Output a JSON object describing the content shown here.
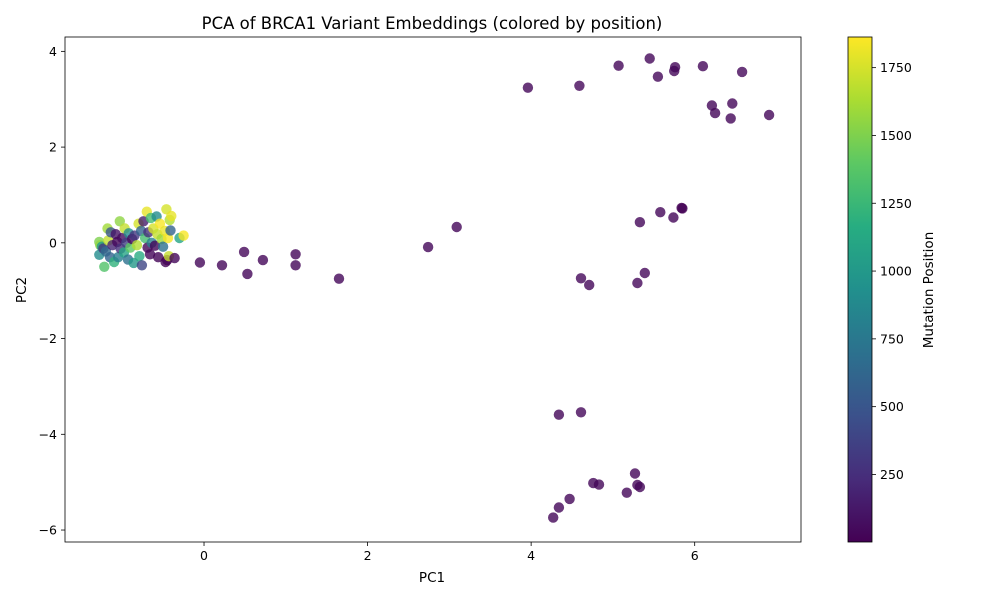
{
  "chart_data": {
    "type": "scatter",
    "title": "PCA of BRCA1 Variant Embeddings (colored by position)",
    "xlabel": "PC1",
    "ylabel": "PC2",
    "xlim": [
      -1.7,
      7.3
    ],
    "ylim": [
      -6.25,
      4.3
    ],
    "xticks": [
      0,
      2,
      4,
      6
    ],
    "yticks": [
      4,
      2,
      0,
      -2,
      -4,
      -6
    ],
    "xtick_labels": [
      "0",
      "2",
      "4",
      "6"
    ],
    "ytick_labels": [
      "4",
      "2",
      "0",
      "−2",
      "−4",
      "−6"
    ],
    "colorbar": {
      "label": "Mutation Position",
      "colormap": "viridis",
      "range": [
        1,
        1863
      ],
      "ticks": [
        250,
        500,
        750,
        1000,
        1250,
        1500,
        1750
      ],
      "tick_labels": [
        "250",
        "500",
        "750",
        "1000",
        "1250",
        "1500",
        "1750"
      ]
    },
    "grid": false,
    "legend": "none",
    "points": [
      {
        "x": 3.96,
        "y": 3.24,
        "c": 30
      },
      {
        "x": 4.59,
        "y": 3.28,
        "c": 40
      },
      {
        "x": 5.07,
        "y": 3.7,
        "c": 30
      },
      {
        "x": 5.45,
        "y": 3.85,
        "c": 30
      },
      {
        "x": 5.55,
        "y": 3.47,
        "c": 30
      },
      {
        "x": 5.75,
        "y": 3.59,
        "c": 30
      },
      {
        "x": 5.76,
        "y": 3.67,
        "c": 30
      },
      {
        "x": 6.1,
        "y": 3.69,
        "c": 30
      },
      {
        "x": 6.58,
        "y": 3.57,
        "c": 40
      },
      {
        "x": 6.21,
        "y": 2.87,
        "c": 30
      },
      {
        "x": 6.46,
        "y": 2.91,
        "c": 30
      },
      {
        "x": 6.25,
        "y": 2.71,
        "c": 30
      },
      {
        "x": 6.44,
        "y": 2.6,
        "c": 30
      },
      {
        "x": 6.91,
        "y": 2.67,
        "c": 30
      },
      {
        "x": 5.58,
        "y": 0.64,
        "c": 30
      },
      {
        "x": 5.84,
        "y": 0.73,
        "c": 10
      },
      {
        "x": 5.85,
        "y": 0.72,
        "c": 10
      },
      {
        "x": 5.74,
        "y": 0.53,
        "c": 30
      },
      {
        "x": 5.33,
        "y": 0.43,
        "c": 30
      },
      {
        "x": 3.09,
        "y": 0.33,
        "c": 30
      },
      {
        "x": 2.74,
        "y": -0.09,
        "c": 30
      },
      {
        "x": 1.12,
        "y": -0.24,
        "c": 30
      },
      {
        "x": 1.12,
        "y": -0.47,
        "c": 30
      },
      {
        "x": 1.65,
        "y": -0.75,
        "c": 30
      },
      {
        "x": 0.72,
        "y": -0.36,
        "c": 30
      },
      {
        "x": 0.49,
        "y": -0.19,
        "c": 40
      },
      {
        "x": 0.53,
        "y": -0.65,
        "c": 30
      },
      {
        "x": 0.22,
        "y": -0.47,
        "c": 30
      },
      {
        "x": -0.05,
        "y": -0.41,
        "c": 30
      },
      {
        "x": 4.61,
        "y": -0.74,
        "c": 40
      },
      {
        "x": 4.71,
        "y": -0.88,
        "c": 30
      },
      {
        "x": 5.3,
        "y": -0.84,
        "c": 40
      },
      {
        "x": 5.39,
        "y": -0.63,
        "c": 40
      },
      {
        "x": 4.34,
        "y": -3.59,
        "c": 30
      },
      {
        "x": 4.61,
        "y": -3.54,
        "c": 40
      },
      {
        "x": 5.27,
        "y": -4.82,
        "c": 30
      },
      {
        "x": 4.76,
        "y": -5.02,
        "c": 30
      },
      {
        "x": 4.83,
        "y": -5.05,
        "c": 30
      },
      {
        "x": 5.3,
        "y": -5.06,
        "c": 30
      },
      {
        "x": 5.33,
        "y": -5.1,
        "c": 30
      },
      {
        "x": 5.17,
        "y": -5.22,
        "c": 30
      },
      {
        "x": 4.47,
        "y": -5.35,
        "c": 30
      },
      {
        "x": 4.34,
        "y": -5.53,
        "c": 30
      },
      {
        "x": 4.27,
        "y": -5.74,
        "c": 30
      },
      {
        "x": -1.28,
        "y": 0.02,
        "c": 1500
      },
      {
        "x": -1.27,
        "y": -0.05,
        "c": 1560
      },
      {
        "x": -1.28,
        "y": -0.25,
        "c": 900
      },
      {
        "x": -1.25,
        "y": -0.08,
        "c": 1000
      },
      {
        "x": -1.23,
        "y": -0.12,
        "c": 300
      },
      {
        "x": -1.22,
        "y": -0.5,
        "c": 1350
      },
      {
        "x": -1.2,
        "y": -0.18,
        "c": 650
      },
      {
        "x": -1.18,
        "y": 0.3,
        "c": 1600
      },
      {
        "x": -1.17,
        "y": 0.05,
        "c": 1700
      },
      {
        "x": -1.15,
        "y": -0.3,
        "c": 600
      },
      {
        "x": -1.14,
        "y": 0.22,
        "c": 500
      },
      {
        "x": -1.12,
        "y": -0.05,
        "c": 200
      },
      {
        "x": -1.1,
        "y": -0.4,
        "c": 1200
      },
      {
        "x": -1.08,
        "y": 0.18,
        "c": 100
      },
      {
        "x": -1.06,
        "y": 0.02,
        "c": 30
      },
      {
        "x": -1.05,
        "y": -0.3,
        "c": 800
      },
      {
        "x": -1.03,
        "y": 0.45,
        "c": 1550
      },
      {
        "x": -1.02,
        "y": -0.12,
        "c": 250
      },
      {
        "x": -1.0,
        "y": 0.1,
        "c": 60
      },
      {
        "x": -0.98,
        "y": -0.2,
        "c": 1100
      },
      {
        "x": -0.97,
        "y": 0.3,
        "c": 1700
      },
      {
        "x": -0.95,
        "y": 0.0,
        "c": 350
      },
      {
        "x": -0.93,
        "y": -0.35,
        "c": 700
      },
      {
        "x": -0.92,
        "y": 0.2,
        "c": 900
      },
      {
        "x": -0.9,
        "y": -0.1,
        "c": 1400
      },
      {
        "x": -0.88,
        "y": 0.08,
        "c": 40
      },
      {
        "x": -0.86,
        "y": -0.42,
        "c": 1000
      },
      {
        "x": -0.85,
        "y": 0.15,
        "c": 300
      },
      {
        "x": -0.82,
        "y": -0.05,
        "c": 1650
      },
      {
        "x": -0.8,
        "y": 0.4,
        "c": 1750
      },
      {
        "x": -0.79,
        "y": -0.28,
        "c": 1150
      },
      {
        "x": -0.77,
        "y": 0.25,
        "c": 600
      },
      {
        "x": -0.76,
        "y": -0.47,
        "c": 400
      },
      {
        "x": -0.74,
        "y": 0.45,
        "c": 150
      },
      {
        "x": -0.72,
        "y": 0.1,
        "c": 1300
      },
      {
        "x": -0.7,
        "y": 0.65,
        "c": 1800
      },
      {
        "x": -0.69,
        "y": -0.1,
        "c": 20
      },
      {
        "x": -0.68,
        "y": 0.22,
        "c": 250
      },
      {
        "x": -0.66,
        "y": -0.24,
        "c": 40
      },
      {
        "x": -0.65,
        "y": 0.52,
        "c": 1300
      },
      {
        "x": -0.64,
        "y": 0.0,
        "c": 800
      },
      {
        "x": -0.62,
        "y": 0.3,
        "c": 1750
      },
      {
        "x": -0.6,
        "y": -0.06,
        "c": 30
      },
      {
        "x": -0.58,
        "y": 0.55,
        "c": 900
      },
      {
        "x": -0.57,
        "y": 0.18,
        "c": 1700
      },
      {
        "x": -0.56,
        "y": -0.3,
        "c": 20
      },
      {
        "x": -0.54,
        "y": 0.4,
        "c": 1850
      },
      {
        "x": -0.52,
        "y": 0.08,
        "c": 1600
      },
      {
        "x": -0.5,
        "y": -0.08,
        "c": 700
      },
      {
        "x": -0.48,
        "y": 0.25,
        "c": 1800
      },
      {
        "x": -0.47,
        "y": -0.4,
        "c": 5
      },
      {
        "x": -0.46,
        "y": 0.7,
        "c": 1750
      },
      {
        "x": -0.45,
        "y": -0.36,
        "c": 10
      },
      {
        "x": -0.44,
        "y": 0.1,
        "c": 1850
      },
      {
        "x": -0.43,
        "y": -0.28,
        "c": 1700
      },
      {
        "x": -0.42,
        "y": 0.48,
        "c": 1650
      },
      {
        "x": -0.41,
        "y": 0.26,
        "c": 600
      },
      {
        "x": -0.4,
        "y": 0.56,
        "c": 1800
      },
      {
        "x": -0.36,
        "y": -0.32,
        "c": 30
      },
      {
        "x": -0.3,
        "y": 0.1,
        "c": 1100
      },
      {
        "x": -0.25,
        "y": 0.15,
        "c": 1850
      }
    ]
  }
}
